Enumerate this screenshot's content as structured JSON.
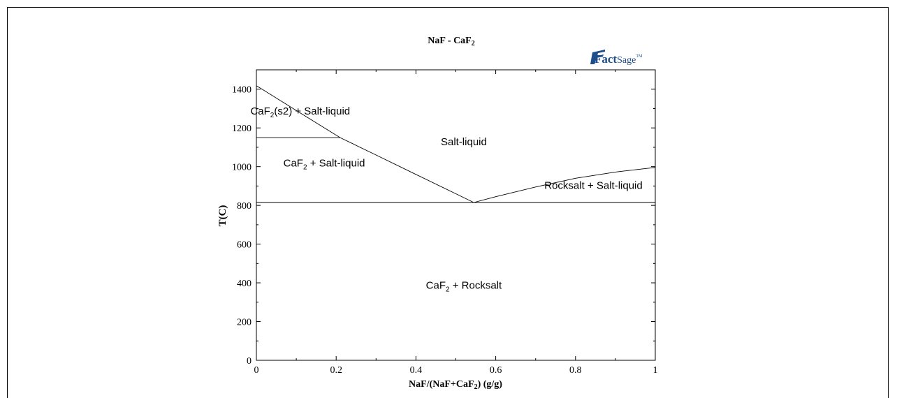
{
  "logo": {
    "main": "Fact",
    "suffix": "Sage",
    "tm": "TM",
    "color": "#1f4e8c"
  },
  "chart_data": {
    "type": "line",
    "title": {
      "base": "NaF - CaF",
      "sub": "2"
    },
    "xlabel": {
      "pre": "NaF/(NaF+CaF",
      "sub": "2",
      "post": ") (g/g)"
    },
    "ylabel": "T(C)",
    "xlim": [
      0,
      1
    ],
    "ylim": [
      0,
      1500
    ],
    "x_ticks": [
      0,
      0.2,
      0.4,
      0.6,
      0.8,
      1
    ],
    "x_tick_labels": [
      "0",
      "0.2",
      "0.4",
      "0.6",
      "0.8",
      "1"
    ],
    "y_ticks": [
      0,
      200,
      400,
      600,
      800,
      1000,
      1200,
      1400
    ],
    "y_tick_labels": [
      "0",
      "200",
      "400",
      "600",
      "800",
      "1000",
      "1200",
      "1400"
    ],
    "grid": false,
    "series": [
      {
        "points": [
          [
            0,
            1418
          ],
          [
            0.1,
            1290
          ],
          [
            0.21,
            1150
          ],
          [
            0.3,
            1060
          ],
          [
            0.4,
            960
          ],
          [
            0.5,
            860
          ],
          [
            0.545,
            815
          ]
        ]
      },
      {
        "points": [
          [
            0.545,
            815
          ],
          [
            0.6,
            845
          ],
          [
            0.7,
            895
          ],
          [
            0.8,
            940
          ],
          [
            0.9,
            972
          ],
          [
            1.0,
            996
          ]
        ]
      },
      {
        "points": [
          [
            0,
            1150
          ],
          [
            0.21,
            1150
          ]
        ]
      },
      {
        "points": [
          [
            0,
            815
          ],
          [
            1,
            815
          ]
        ]
      }
    ],
    "regions": [
      {
        "label_pre": "CaF",
        "sub": "2",
        "label_post": "(s2) + Salt-liquid",
        "x": 0.11,
        "y": 1270
      },
      {
        "label_pre": "Salt-liquid",
        "sub": "",
        "label_post": "",
        "x": 0.52,
        "y": 1110
      },
      {
        "label_pre": "CaF",
        "sub": "2",
        "label_post": " + Salt-liquid",
        "x": 0.17,
        "y": 1000
      },
      {
        "label_pre": "Rocksalt + Salt-liquid",
        "sub": "",
        "label_post": "",
        "x": 0.845,
        "y": 885
      },
      {
        "label_pre": "CaF",
        "sub": "2",
        "label_post": " + Rocksalt",
        "x": 0.52,
        "y": 370
      }
    ]
  }
}
